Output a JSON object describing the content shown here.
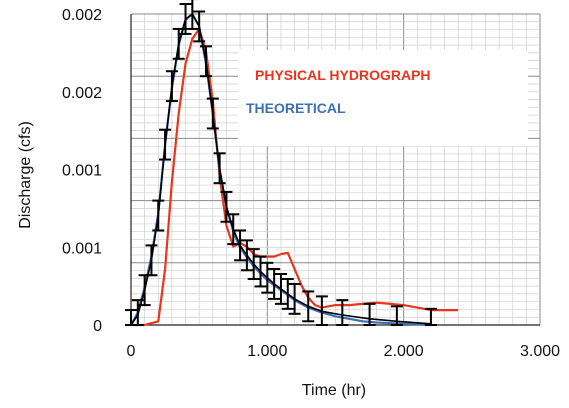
{
  "chart_data": {
    "type": "line",
    "xlabel": "Time (hr)",
    "ylabel": "Discharge (cfs)",
    "xlim": [
      0,
      3
    ],
    "ylim": [
      0,
      0.0025
    ],
    "x_tick_labels": [
      "0",
      "1.000",
      "2.000",
      "3.000"
    ],
    "y_tick_labels": [
      "0",
      "0.001",
      "0.001",
      "0.002",
      "0.002"
    ],
    "grid": true,
    "legend": "upper-right",
    "series": [
      {
        "name": "PHYSICAL HYDROGRAPH",
        "color": "#e8361e",
        "x": [
          0,
          0.1,
          0.2,
          0.25,
          0.3,
          0.35,
          0.4,
          0.45,
          0.5,
          0.55,
          0.6,
          0.65,
          0.7,
          0.75,
          0.8,
          0.85,
          0.9,
          0.95,
          1.0,
          1.05,
          1.1,
          1.15,
          1.2,
          1.25,
          1.3,
          1.35,
          1.4,
          1.5,
          1.6,
          1.8,
          2.0,
          2.2,
          2.4
        ],
        "y": [
          0,
          0,
          3e-05,
          0.00045,
          0.00115,
          0.0017,
          0.0021,
          0.0023,
          0.00238,
          0.0022,
          0.0018,
          0.0012,
          0.0008,
          0.00063,
          0.00066,
          0.00063,
          0.00057,
          0.00055,
          0.00055,
          0.00055,
          0.00057,
          0.00058,
          0.00045,
          0.00032,
          0.00022,
          0.00016,
          0.00014,
          0.00016,
          0.00016,
          0.00018,
          0.00016,
          0.00012,
          0.00012
        ]
      },
      {
        "name": "THEORETICAL",
        "color": "#3d6fb3",
        "x": [
          0,
          0.05,
          0.1,
          0.15,
          0.2,
          0.25,
          0.3,
          0.35,
          0.4,
          0.45,
          0.5,
          0.55,
          0.6,
          0.65,
          0.7,
          0.75,
          0.8,
          0.9,
          1.0,
          1.1,
          1.2,
          1.3,
          1.4,
          1.5,
          1.6,
          1.7,
          1.8,
          2.0,
          2.2
        ],
        "y": [
          0,
          0.0001,
          0.0003,
          0.00055,
          0.0009,
          0.00145,
          0.0019,
          0.00225,
          0.00245,
          0.0025,
          0.0024,
          0.0021,
          0.0017,
          0.00125,
          0.00095,
          0.00075,
          0.00062,
          0.00047,
          0.00036,
          0.00028,
          0.0002,
          0.00014,
          0.0001,
          7e-05,
          5e-05,
          3e-05,
          2e-05,
          1e-05,
          0
        ]
      }
    ],
    "error_bars": {
      "x": [
        0,
        0.05,
        0.1,
        0.15,
        0.2,
        0.25,
        0.3,
        0.35,
        0.4,
        0.45,
        0.5,
        0.55,
        0.6,
        0.65,
        0.7,
        0.75,
        0.8,
        0.85,
        0.9,
        0.95,
        1.0,
        1.05,
        1.1,
        1.15,
        1.2,
        1.3,
        1.4,
        1.55,
        1.75,
        1.95,
        2.2
      ],
      "y": [
        0,
        8e-05,
        0.00028,
        0.00052,
        0.00088,
        0.00145,
        0.00192,
        0.00226,
        0.00246,
        0.0025,
        0.0024,
        0.00212,
        0.0017,
        0.00126,
        0.00095,
        0.00077,
        0.00064,
        0.00056,
        0.00049,
        0.00043,
        0.00038,
        0.00033,
        0.00029,
        0.00025,
        0.00021,
        0.00015,
        0.00011,
        8e-05,
        5e-05,
        3e-05,
        1e-05
      ],
      "err": 0.00012
    }
  }
}
